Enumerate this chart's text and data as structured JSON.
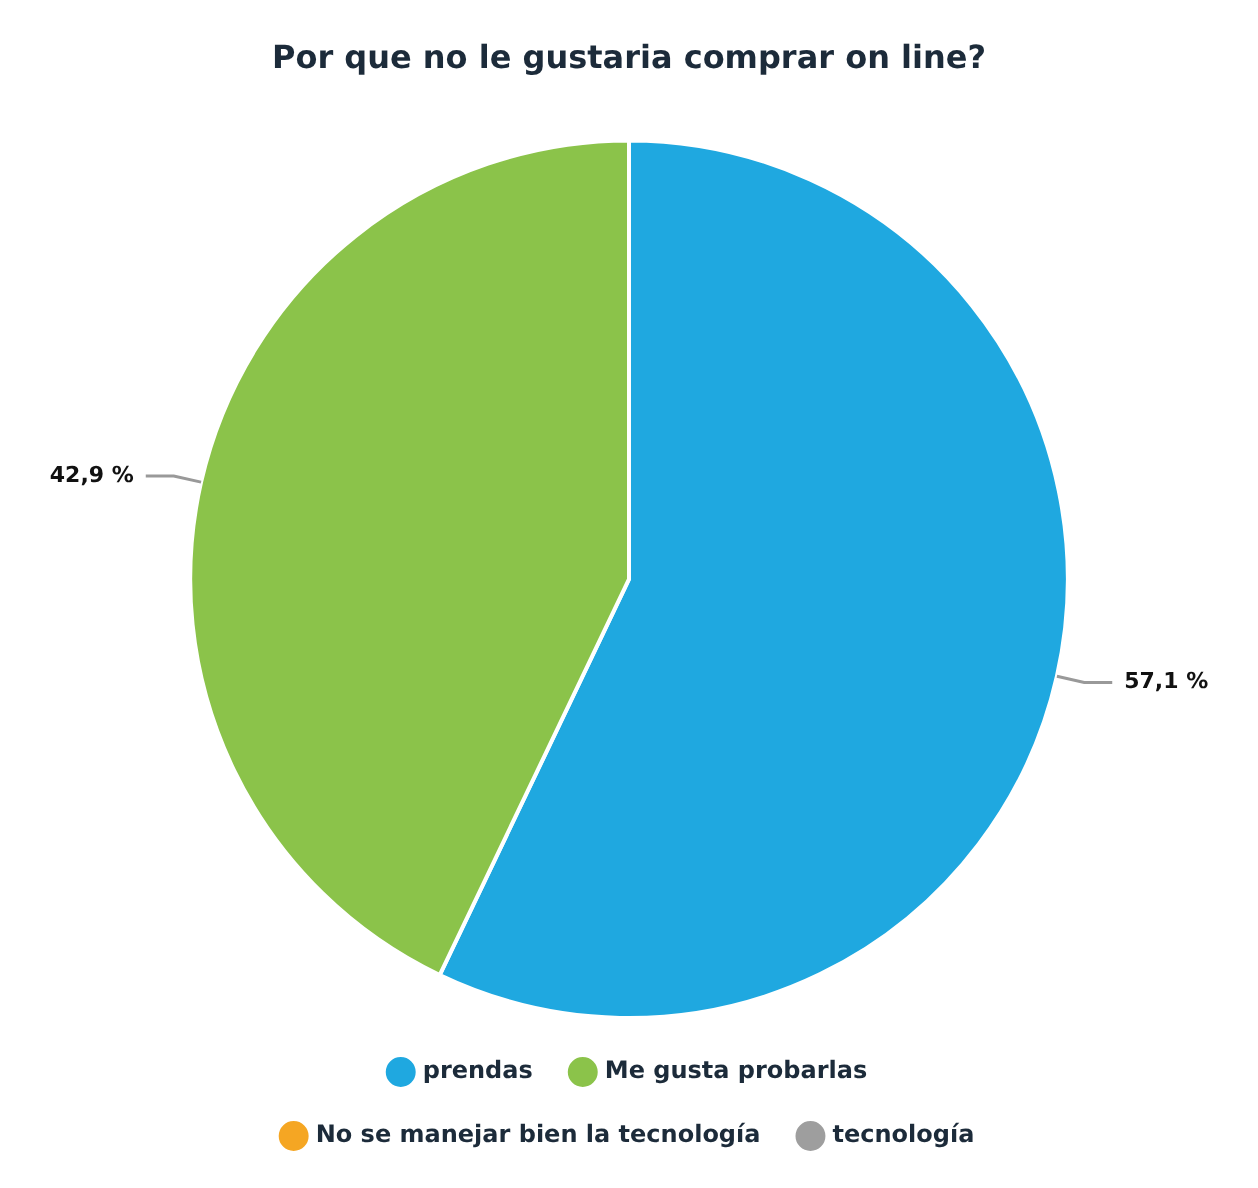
{
  "chart_data": {
    "type": "pie",
    "title": "Por que no le gustaria comprar on line?",
    "categories": [
      "prendas",
      "Me gusta probarlas",
      "No se manejar bien la tecnología",
      "tecnología"
    ],
    "values": [
      57.1,
      42.9,
      0,
      0
    ],
    "colors": [
      "#1fa8e0",
      "#8bc34a",
      "#f5a623",
      "#9e9e9e"
    ],
    "value_labels": [
      "57,1 %",
      "42,9 %",
      null,
      null
    ],
    "legend": "bottom"
  }
}
